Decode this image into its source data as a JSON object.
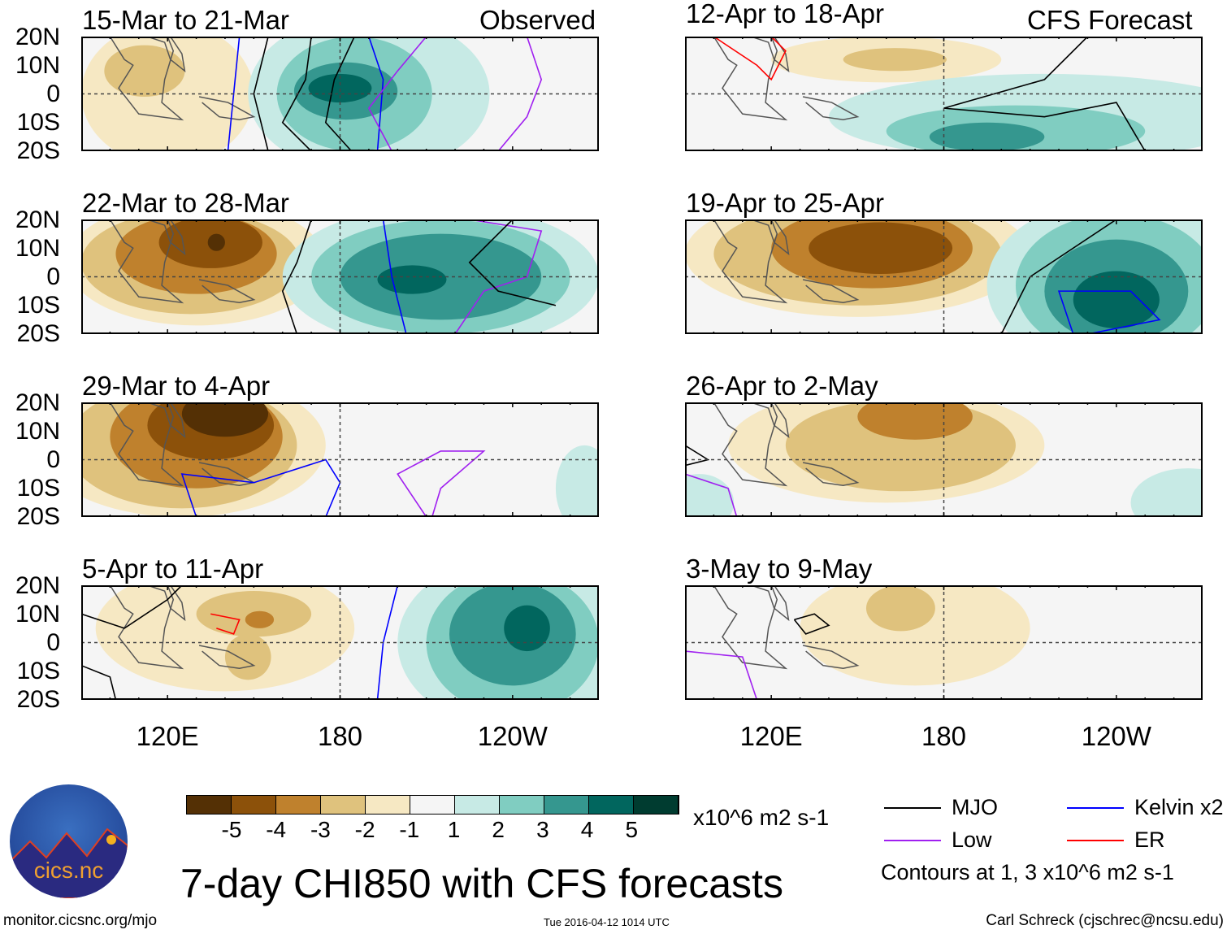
{
  "labels": {
    "observed": "Observed",
    "forecast": "CFS Forecast"
  },
  "lat_labels": [
    "20N",
    "10N",
    "0",
    "10S",
    "20S"
  ],
  "lon_labels": [
    "120E",
    "180",
    "120W"
  ],
  "colorbar": {
    "colors": [
      "#543005",
      "#8c510a",
      "#bf812d",
      "#dfc27d",
      "#f6e8c3",
      "#f5f5f5",
      "#c7eae5",
      "#80cdc1",
      "#35978f",
      "#01665e",
      "#003c30"
    ],
    "ticks": [
      "-5",
      "-4",
      "-3",
      "-2",
      "-1",
      "1",
      "2",
      "3",
      "4",
      "5"
    ],
    "units": "x10^6 m2 s-1"
  },
  "title": "7-day CHI850 with CFS forecasts",
  "legend": {
    "items": [
      {
        "label": "MJO",
        "color": "#000000"
      },
      {
        "label": "Kelvin x2",
        "color": "#0000ff"
      },
      {
        "label": "Low",
        "color": "#a020f0"
      },
      {
        "label": "ER",
        "color": "#ff0000"
      }
    ],
    "note": "Contours at 1, 3 x10^6 m2 s-1"
  },
  "footer": {
    "url": "monitor.cicsnc.org/mjo",
    "timestamp": "Tue 2016-04-12 1014 UTC",
    "author": "Carl Schreck (cjschrec@ncsu.edu)"
  },
  "logo_text": "cics.nc",
  "panels": [
    {
      "title": "15-Mar to 21-Mar",
      "blobs": [
        [
          120,
          0,
          30,
          25,
          -1
        ],
        [
          112,
          8,
          14,
          9,
          -2
        ],
        [
          190,
          0,
          42,
          28,
          1
        ],
        [
          185,
          0,
          27,
          20,
          2
        ],
        [
          182,
          1,
          18,
          10,
          3
        ],
        [
          180,
          2,
          11,
          5,
          4
        ]
      ],
      "contours": [
        {
          "c": "#0000ff",
          "p": [
            [
              145,
              20
            ],
            [
              143,
              0
            ],
            [
              141,
              -20
            ]
          ]
        },
        {
          "c": "#000000",
          "p": [
            [
              155,
              20
            ],
            [
              150,
              0
            ],
            [
              155,
              -20
            ]
          ]
        },
        {
          "c": "#000000",
          "p": [
            [
              170,
              20
            ],
            [
              168,
              5
            ],
            [
              160,
              -10
            ],
            [
              170,
              -20
            ]
          ]
        },
        {
          "c": "#000000",
          "p": [
            [
              185,
              20
            ],
            [
              178,
              5
            ],
            [
              175,
              -10
            ],
            [
              184,
              -20
            ]
          ]
        },
        {
          "c": "#0000ff",
          "p": [
            [
              190,
              20
            ],
            [
              195,
              5
            ],
            [
              193,
              -20
            ]
          ]
        },
        {
          "c": "#a020f0",
          "p": [
            [
              210,
              20
            ],
            [
              200,
              8
            ],
            [
              190,
              -5
            ],
            [
              198,
              -20
            ]
          ]
        },
        {
          "c": "#a020f0",
          "p": [
            [
              245,
              20
            ],
            [
              250,
              5
            ],
            [
              245,
              -8
            ],
            [
              235,
              -20
            ]
          ]
        }
      ]
    },
    {
      "title": "12-Apr to 18-Apr",
      "blobs": [
        [
          160,
          12,
          40,
          8,
          -1
        ],
        [
          163,
          12,
          18,
          4,
          -2
        ],
        [
          215,
          -8,
          75,
          15,
          1
        ],
        [
          205,
          -13,
          45,
          9,
          2
        ],
        [
          195,
          -15,
          20,
          5,
          3
        ]
      ],
      "contours": [
        {
          "c": "#000000",
          "p": [
            [
              230,
              20
            ],
            [
              215,
              5
            ],
            [
              180,
              -5
            ],
            [
              215,
              -8
            ],
            [
              240,
              -3
            ],
            [
              250,
              -20
            ]
          ]
        },
        {
          "c": "#ff0000",
          "p": [
            [
              100,
              20
            ],
            [
              115,
              10
            ],
            [
              120,
              5
            ],
            [
              125,
              15
            ],
            [
              120,
              20
            ]
          ]
        }
      ]
    },
    {
      "title": "22-Mar to 28-Mar",
      "blobs": [
        [
          130,
          5,
          45,
          22,
          -1
        ],
        [
          128,
          5,
          38,
          18,
          -2
        ],
        [
          130,
          8,
          28,
          14,
          -3
        ],
        [
          135,
          12,
          18,
          9,
          -4
        ],
        [
          137,
          12,
          3,
          3,
          -5
        ],
        [
          215,
          0,
          55,
          25,
          1
        ],
        [
          215,
          0,
          45,
          20,
          2
        ],
        [
          215,
          0,
          35,
          15,
          3
        ],
        [
          205,
          -1,
          12,
          5,
          4
        ]
      ],
      "contours": [
        {
          "c": "#000000",
          "p": [
            [
              170,
              20
            ],
            [
              165,
              5
            ],
            [
              160,
              -5
            ],
            [
              165,
              -20
            ]
          ]
        },
        {
          "c": "#0000ff",
          "p": [
            [
              195,
              20
            ],
            [
              198,
              0
            ],
            [
              203,
              -20
            ]
          ]
        },
        {
          "c": "#a020f0",
          "p": [
            [
              225,
              20
            ],
            [
              250,
              16
            ],
            [
              245,
              0
            ],
            [
              230,
              -5
            ],
            [
              220,
              -20
            ]
          ]
        },
        {
          "c": "#000000",
          "p": [
            [
              240,
              20
            ],
            [
              225,
              5
            ],
            [
              235,
              -5
            ],
            [
              255,
              -10
            ]
          ]
        }
      ]
    },
    {
      "title": "19-Apr to 25-Apr",
      "blobs": [
        [
          150,
          8,
          60,
          22,
          -1
        ],
        [
          150,
          8,
          50,
          18,
          -2
        ],
        [
          155,
          10,
          35,
          14,
          -3
        ],
        [
          158,
          10,
          25,
          9,
          -4
        ],
        [
          240,
          -3,
          45,
          30,
          1
        ],
        [
          240,
          -3,
          35,
          25,
          2
        ],
        [
          240,
          -5,
          25,
          18,
          3
        ],
        [
          240,
          -8,
          15,
          10,
          4
        ]
      ],
      "contours": [
        {
          "c": "#000000",
          "p": [
            [
              200,
              -20
            ],
            [
              210,
              0
            ],
            [
              240,
              20
            ],
            [
              255,
              20
            ]
          ]
        },
        {
          "c": "#0000ff",
          "p": [
            [
              225,
              -20
            ],
            [
              220,
              -5
            ],
            [
              245,
              -5
            ],
            [
              255,
              -15
            ],
            [
              230,
              -20
            ]
          ]
        }
      ]
    },
    {
      "title": "29-Mar to 4-Apr",
      "blobs": [
        [
          125,
          5,
          50,
          25,
          -1
        ],
        [
          125,
          5,
          40,
          22,
          -2
        ],
        [
          130,
          8,
          30,
          18,
          -3
        ],
        [
          135,
          12,
          22,
          12,
          -4
        ],
        [
          140,
          16,
          15,
          8,
          -5
        ],
        [
          265,
          -10,
          10,
          15,
          1
        ]
      ],
      "contours": [
        {
          "c": "#0000ff",
          "p": [
            [
              130,
              -20
            ],
            [
              125,
              -5
            ],
            [
              150,
              -8
            ],
            [
              175,
              0
            ],
            [
              180,
              -8
            ],
            [
              175,
              -20
            ]
          ]
        },
        {
          "c": "#a020f0",
          "p": [
            [
              210,
              -20
            ],
            [
              200,
              -5
            ],
            [
              215,
              3
            ],
            [
              230,
              3
            ],
            [
              215,
              -10
            ],
            [
              212,
              -20
            ]
          ]
        }
      ]
    },
    {
      "title": "26-Apr to 2-May",
      "blobs": [
        [
          160,
          5,
          55,
          20,
          -1
        ],
        [
          165,
          5,
          40,
          16,
          -2
        ],
        [
          170,
          15,
          20,
          8,
          -3
        ],
        [
          265,
          -15,
          20,
          12,
          1
        ],
        [
          95,
          -15,
          12,
          10,
          1
        ]
      ],
      "contours": [
        {
          "c": "#a020f0",
          "p": [
            [
              90,
              -5
            ],
            [
              105,
              -10
            ],
            [
              108,
              -20
            ]
          ]
        },
        {
          "c": "#000000",
          "p": [
            [
              90,
              5
            ],
            [
              98,
              0
            ],
            [
              90,
              -2
            ]
          ]
        }
      ]
    },
    {
      "title": "5-Apr to 11-Apr",
      "blobs": [
        [
          140,
          5,
          45,
          22,
          -1
        ],
        [
          150,
          10,
          20,
          8,
          -2
        ],
        [
          148,
          -5,
          8,
          8,
          -2
        ],
        [
          152,
          8,
          5,
          3,
          -3
        ],
        [
          240,
          0,
          40,
          30,
          1
        ],
        [
          240,
          0,
          30,
          25,
          2
        ],
        [
          240,
          3,
          22,
          18,
          3
        ],
        [
          245,
          5,
          8,
          8,
          4
        ]
      ],
      "contours": [
        {
          "c": "#000000",
          "p": [
            [
              90,
              10
            ],
            [
              105,
              5
            ],
            [
              120,
              15
            ],
            [
              125,
              20
            ]
          ]
        },
        {
          "c": "#ff0000",
          "p": [
            [
              135,
              10
            ],
            [
              145,
              8
            ],
            [
              143,
              3
            ],
            [
              137,
              5
            ]
          ]
        },
        {
          "c": "#0000ff",
          "p": [
            [
              200,
              20
            ],
            [
              195,
              0
            ],
            [
              193,
              -20
            ]
          ]
        },
        {
          "c": "#000000",
          "p": [
            [
              90,
              -8
            ],
            [
              100,
              -12
            ],
            [
              102,
              -20
            ]
          ]
        }
      ]
    },
    {
      "title": "3-May to 9-May",
      "blobs": [
        [
          170,
          5,
          40,
          20,
          -1
        ],
        [
          165,
          12,
          12,
          8,
          -2
        ]
      ],
      "contours": [
        {
          "c": "#000000",
          "p": [
            [
              128,
              8
            ],
            [
              135,
              10
            ],
            [
              140,
              6
            ],
            [
              132,
              3
            ],
            [
              128,
              8
            ]
          ]
        },
        {
          "c": "#a020f0",
          "p": [
            [
              90,
              -3
            ],
            [
              110,
              -5
            ],
            [
              115,
              -20
            ]
          ]
        }
      ]
    }
  ]
}
